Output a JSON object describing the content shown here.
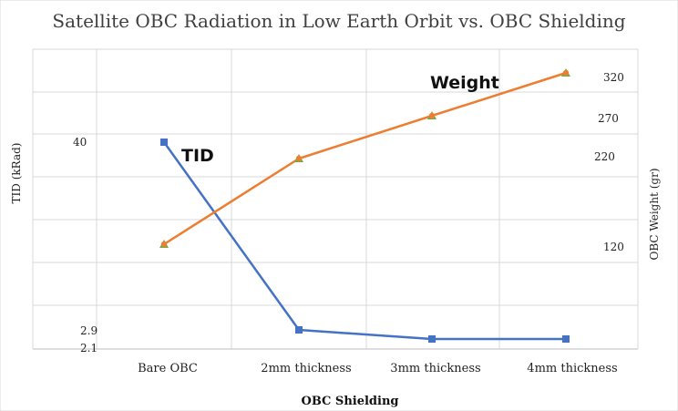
{
  "chart_data": {
    "type": "line",
    "title": "Satellite OBC Radiation in Low Earth Orbit vs. OBC Shielding",
    "xlabel": "OBC Shielding",
    "ylabel": "TID (kRad)",
    "y2label": "OBC Weight (gr)",
    "categories": [
      "Bare OBC",
      "2mm thickness",
      "3mm thickness",
      "4mm thickness"
    ],
    "y_ticks": [
      "40",
      "2.9",
      "2.1"
    ],
    "y2_ticks": [
      "320",
      "270",
      "220",
      "120"
    ],
    "grid": true,
    "legend": "none",
    "series": [
      {
        "name": "TID",
        "axis": "left",
        "values": [
          40,
          2.9,
          2.5,
          2.5
        ],
        "color": "#4472C4"
      },
      {
        "name": "Weight",
        "axis": "right",
        "values": [
          130,
          230,
          280,
          330
        ],
        "color": "#ED7D31"
      }
    ],
    "annotations": [
      "TID",
      "Weight"
    ]
  }
}
